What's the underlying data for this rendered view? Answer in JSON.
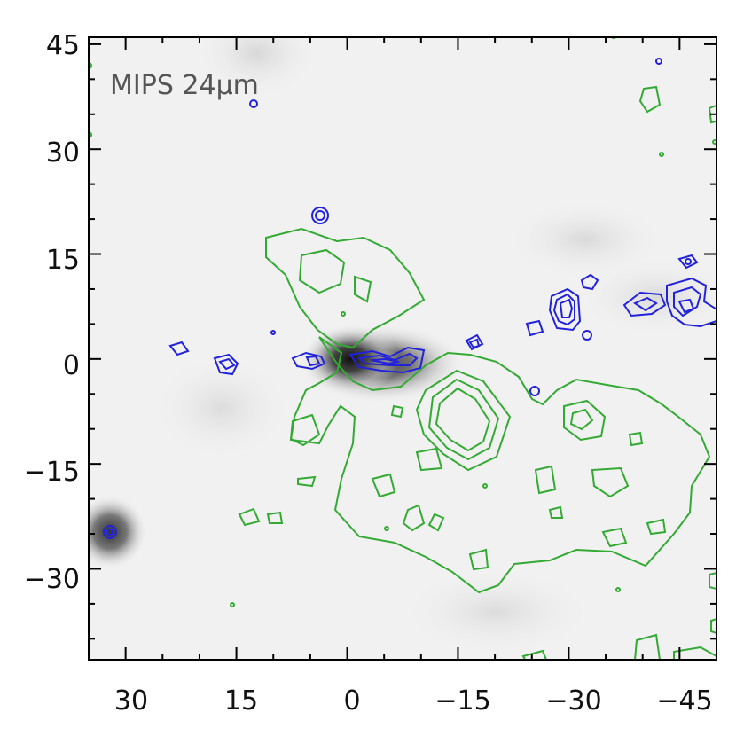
{
  "panel_label": "MIPS 24μm",
  "colors": {
    "background": "#f1f1f1",
    "green_contours": "#33aa33",
    "blue_contours": "#2222dd",
    "frame": "#000000"
  },
  "axes": {
    "x_range": [
      35,
      -50
    ],
    "y_range": [
      -43,
      46
    ],
    "x_ticks": [
      "30",
      "15",
      "0",
      "−15",
      "−30",
      "−45"
    ],
    "y_ticks": [
      "45",
      "30",
      "15",
      "0",
      "−15",
      "−30"
    ],
    "x_tick_values": [
      30,
      15,
      0,
      -15,
      -30,
      -45
    ],
    "y_tick_values": [
      45,
      30,
      15,
      0,
      -15,
      -30
    ]
  }
}
